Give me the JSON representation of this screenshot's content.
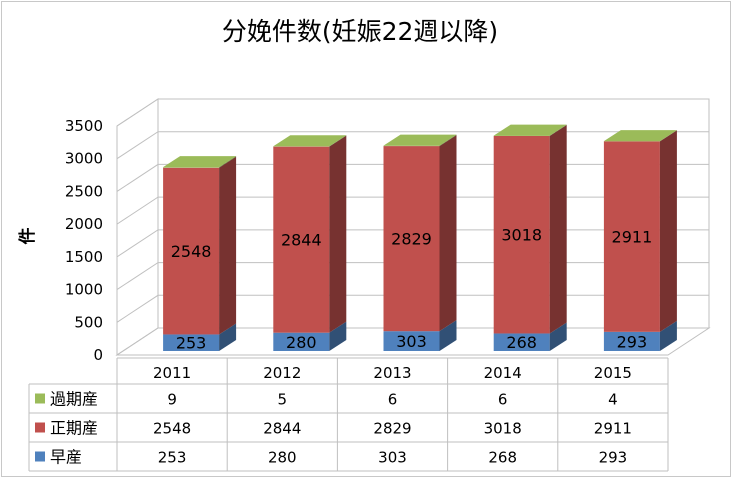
{
  "chart_data": {
    "type": "bar",
    "stacked": true,
    "three_d": true,
    "title": "分娩件数(妊娠22週以降)",
    "xlabel": "",
    "ylabel": "件",
    "ylim": [
      0,
      3500
    ],
    "ytick_step": 500,
    "yticks": [
      "0",
      "500",
      "1000",
      "1500",
      "2000",
      "2500",
      "3000",
      "3500"
    ],
    "grid": true,
    "legend": "data-table-left",
    "categories": [
      "2011",
      "2012",
      "2013",
      "2014",
      "2015"
    ],
    "series": [
      {
        "name": "早産",
        "values": [
          253,
          280,
          303,
          268,
          293
        ],
        "color": "#4f81bd",
        "labels": [
          "253",
          "280",
          "303",
          "268",
          "293"
        ]
      },
      {
        "name": "正期産",
        "values": [
          2548,
          2844,
          2829,
          3018,
          2911
        ],
        "color": "#c0504d",
        "labels": [
          "2548",
          "2844",
          "2829",
          "3018",
          "2911"
        ]
      },
      {
        "name": "過期産",
        "values": [
          9,
          5,
          6,
          6,
          4
        ],
        "color": "#9bbb59",
        "labels": [
          "9",
          "5",
          "6",
          "6",
          "4"
        ]
      }
    ],
    "table_rows": [
      {
        "name": "過期産",
        "color": "#9bbb59",
        "cells": [
          "9",
          "5",
          "6",
          "6",
          "4"
        ]
      },
      {
        "name": "正期産",
        "color": "#c0504d",
        "cells": [
          "2548",
          "2844",
          "2829",
          "3018",
          "2911"
        ]
      },
      {
        "name": "早産",
        "color": "#4f81bd",
        "cells": [
          "253",
          "280",
          "303",
          "268",
          "293"
        ]
      }
    ]
  }
}
